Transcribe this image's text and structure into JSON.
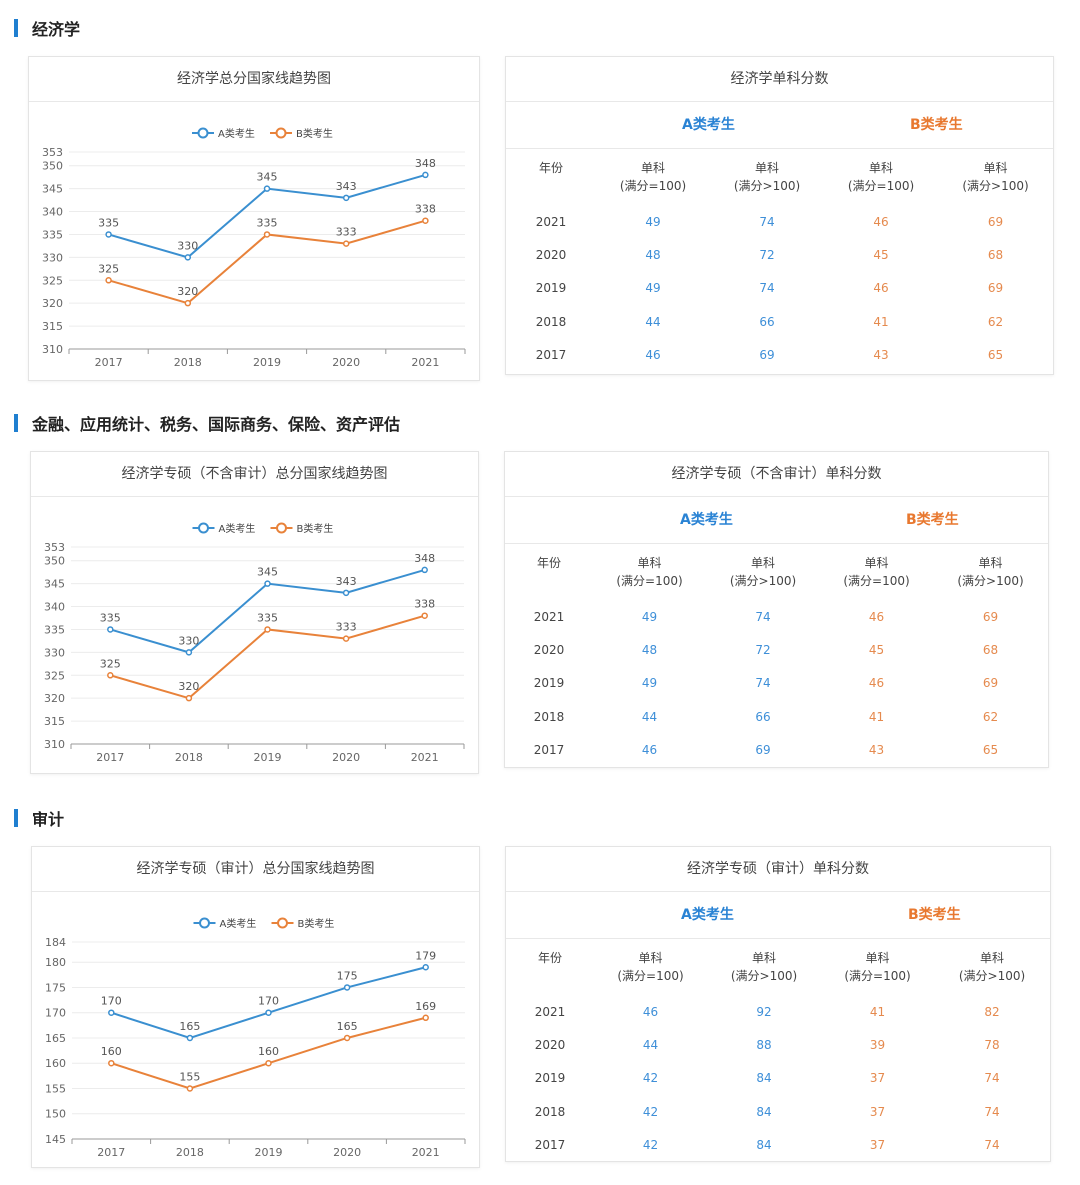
{
  "legend": {
    "a": "A类考生",
    "b": "B类考生"
  },
  "table_headers": {
    "year": "年份",
    "single": "单科",
    "full100": "(满分=100)",
    "fullgt100": "(满分>100)"
  },
  "groups": {
    "a": "A类考生",
    "b": "B类考生"
  },
  "sections": [
    {
      "heading": "经济学",
      "chart_title": "经济学总分国家线趋势图",
      "table_title": "经济学单科分数",
      "rows": [
        {
          "year": "2021",
          "a1": "49",
          "a2": "74",
          "b1": "46",
          "b2": "69"
        },
        {
          "year": "2020",
          "a1": "48",
          "a2": "72",
          "b1": "45",
          "b2": "68"
        },
        {
          "year": "2019",
          "a1": "49",
          "a2": "74",
          "b1": "46",
          "b2": "69"
        },
        {
          "year": "2018",
          "a1": "44",
          "a2": "66",
          "b1": "41",
          "b2": "62"
        },
        {
          "year": "2017",
          "a1": "46",
          "a2": "69",
          "b1": "43",
          "b2": "65"
        }
      ]
    },
    {
      "heading": "金融、应用统计、税务、国际商务、保险、资产评估",
      "chart_title": "经济学专硕（不含审计）总分国家线趋势图",
      "table_title": "经济学专硕（不含审计）单科分数",
      "rows": [
        {
          "year": "2021",
          "a1": "49",
          "a2": "74",
          "b1": "46",
          "b2": "69"
        },
        {
          "year": "2020",
          "a1": "48",
          "a2": "72",
          "b1": "45",
          "b2": "68"
        },
        {
          "year": "2019",
          "a1": "49",
          "a2": "74",
          "b1": "46",
          "b2": "69"
        },
        {
          "year": "2018",
          "a1": "44",
          "a2": "66",
          "b1": "41",
          "b2": "62"
        },
        {
          "year": "2017",
          "a1": "46",
          "a2": "69",
          "b1": "43",
          "b2": "65"
        }
      ]
    },
    {
      "heading": "审计",
      "chart_title": "经济学专硕（审计）总分国家线趋势图",
      "table_title": "经济学专硕（审计）单科分数",
      "rows": [
        {
          "year": "2021",
          "a1": "46",
          "a2": "92",
          "b1": "41",
          "b2": "82"
        },
        {
          "year": "2020",
          "a1": "44",
          "a2": "88",
          "b1": "39",
          "b2": "78"
        },
        {
          "year": "2019",
          "a1": "42",
          "a2": "84",
          "b1": "37",
          "b2": "74"
        },
        {
          "year": "2018",
          "a1": "42",
          "a2": "84",
          "b1": "37",
          "b2": "74"
        },
        {
          "year": "2017",
          "a1": "42",
          "a2": "84",
          "b1": "37",
          "b2": "74"
        }
      ]
    }
  ],
  "chart_data": [
    {
      "type": "line",
      "title": "经济学总分国家线趋势图",
      "x": [
        "2017",
        "2018",
        "2019",
        "2020",
        "2021"
      ],
      "series": [
        {
          "name": "A类考生",
          "values": [
            335,
            330,
            345,
            343,
            348
          ],
          "color": "#3a8fd0"
        },
        {
          "name": "B类考生",
          "values": [
            325,
            320,
            335,
            333,
            338
          ],
          "color": "#e8823a"
        }
      ],
      "yticks": [
        310,
        315,
        320,
        325,
        330,
        335,
        340,
        345,
        350,
        353
      ],
      "ylim": [
        310,
        353
      ],
      "legend": "top-center",
      "grid": true
    },
    {
      "type": "line",
      "title": "经济学专硕（不含审计）总分国家线趋势图",
      "x": [
        "2017",
        "2018",
        "2019",
        "2020",
        "2021"
      ],
      "series": [
        {
          "name": "A类考生",
          "values": [
            335,
            330,
            345,
            343,
            348
          ],
          "color": "#3a8fd0"
        },
        {
          "name": "B类考生",
          "values": [
            325,
            320,
            335,
            333,
            338
          ],
          "color": "#e8823a"
        }
      ],
      "yticks": [
        310,
        315,
        320,
        325,
        330,
        335,
        340,
        345,
        350,
        353
      ],
      "ylim": [
        310,
        353
      ],
      "legend": "top-center",
      "grid": true
    },
    {
      "type": "line",
      "title": "经济学专硕（审计）总分国家线趋势图",
      "x": [
        "2017",
        "2018",
        "2019",
        "2020",
        "2021"
      ],
      "series": [
        {
          "name": "A类考生",
          "values": [
            170,
            165,
            170,
            175,
            179
          ],
          "color": "#3a8fd0"
        },
        {
          "name": "B类考生",
          "values": [
            160,
            155,
            160,
            165,
            169
          ],
          "color": "#e8823a"
        }
      ],
      "yticks": [
        145,
        150,
        155,
        160,
        165,
        170,
        175,
        180,
        184
      ],
      "ylim": [
        145,
        184
      ],
      "legend": "top-center",
      "grid": true
    }
  ]
}
